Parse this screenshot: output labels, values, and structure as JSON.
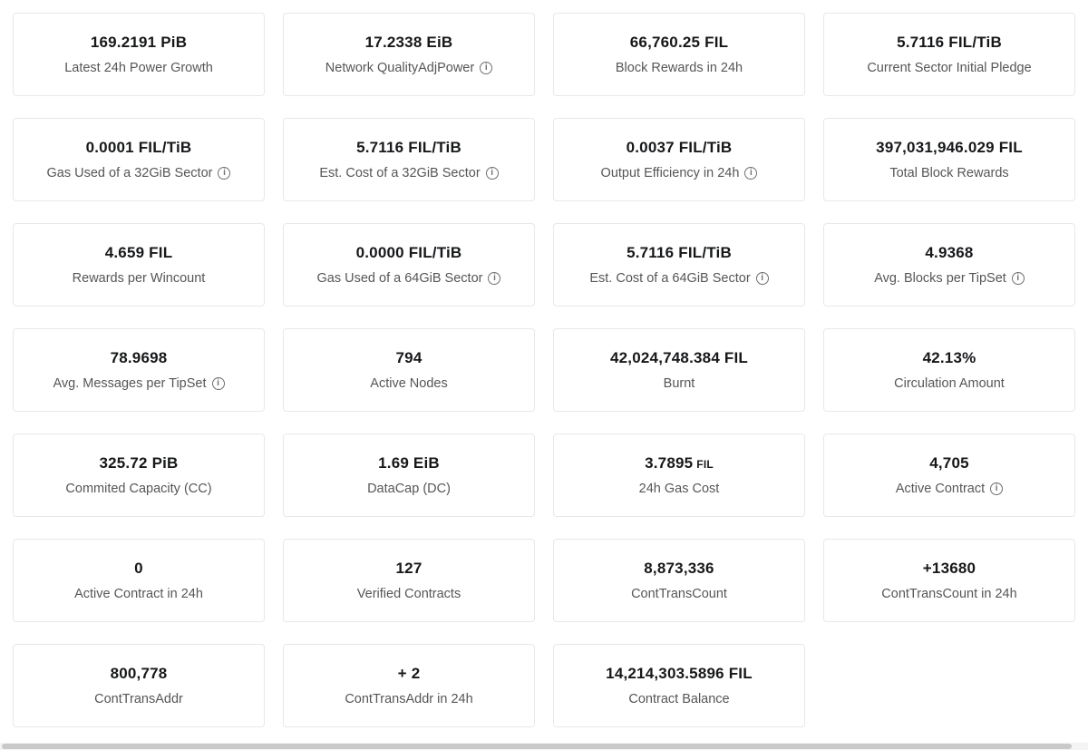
{
  "page": {
    "background": "#ffffff",
    "card_border_color": "#e8e8e8",
    "value_color": "#17181a",
    "label_color": "#565656"
  },
  "icons": {
    "info_glyph": "i"
  },
  "cards": [
    {
      "value": "169.2191 PiB",
      "label": "Latest 24h Power Growth",
      "info": false
    },
    {
      "value": "17.2338 EiB",
      "label": "Network QualityAdjPower",
      "info": true
    },
    {
      "value": "66,760.25 FIL",
      "label": "Block Rewards in 24h",
      "info": false
    },
    {
      "value": "5.7116 FIL/TiB",
      "label": "Current Sector Initial Pledge",
      "info": false
    },
    {
      "value": "0.0001 FIL/TiB",
      "label": "Gas Used of a 32GiB Sector",
      "info": true
    },
    {
      "value": "5.7116 FIL/TiB",
      "label": "Est. Cost of a 32GiB Sector",
      "info": true
    },
    {
      "value": "0.0037 FIL/TiB",
      "label": "Output Efficiency in 24h",
      "info": true
    },
    {
      "value": "397,031,946.029 FIL",
      "label": "Total Block Rewards",
      "info": false
    },
    {
      "value": "4.659 FIL",
      "label": "Rewards per Wincount",
      "info": false
    },
    {
      "value": "0.0000 FIL/TiB",
      "label": "Gas Used of a 64GiB Sector",
      "info": true
    },
    {
      "value": "5.7116 FIL/TiB",
      "label": "Est. Cost of a 64GiB Sector",
      "info": true
    },
    {
      "value": "4.9368",
      "label": "Avg. Blocks per TipSet",
      "info": true
    },
    {
      "value": "78.9698",
      "label": "Avg. Messages per TipSet",
      "info": true
    },
    {
      "value": "794",
      "label": "Active Nodes",
      "info": false
    },
    {
      "value": "42,024,748.384 FIL",
      "label": "Burnt",
      "info": false
    },
    {
      "value": "42.13%",
      "label": "Circulation Amount",
      "info": false
    },
    {
      "value": "325.72 PiB",
      "label": "Commited Capacity (CC)",
      "info": false
    },
    {
      "value": "1.69 EiB",
      "label": "DataCap (DC)",
      "info": false
    },
    {
      "value": "3.7895",
      "unit": "FIL",
      "label": "24h Gas Cost",
      "info": false
    },
    {
      "value": "4,705",
      "label": "Active Contract",
      "info": true
    },
    {
      "value": "0",
      "label": "Active Contract in 24h",
      "info": false
    },
    {
      "value": "127",
      "label": "Verified Contracts",
      "info": false
    },
    {
      "value": "8,873,336",
      "label": "ContTransCount",
      "info": false
    },
    {
      "value": "+13680",
      "label": "ContTransCount in 24h",
      "info": false
    },
    {
      "value": "800,778",
      "label": "ContTransAddr",
      "info": false
    },
    {
      "value": "+ 2",
      "label": "ContTransAddr in 24h",
      "info": false
    },
    {
      "value": "14,214,303.5896 FIL",
      "label": "Contract Balance",
      "info": false
    }
  ]
}
